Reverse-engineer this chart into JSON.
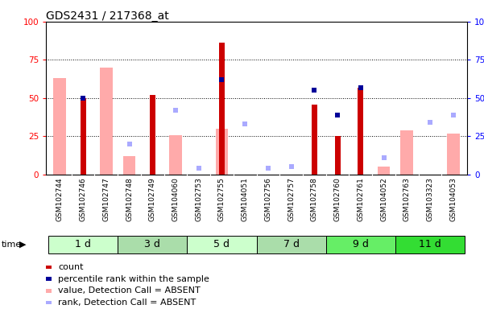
{
  "title": "GDS2431 / 217368_at",
  "samples": [
    "GSM102744",
    "GSM102746",
    "GSM102747",
    "GSM102748",
    "GSM102749",
    "GSM104060",
    "GSM102753",
    "GSM102755",
    "GSM104051",
    "GSM102756",
    "GSM102757",
    "GSM102758",
    "GSM102760",
    "GSM102761",
    "GSM104052",
    "GSM102763",
    "GSM103323",
    "GSM104053"
  ],
  "time_groups": [
    {
      "label": "1 d",
      "indices": [
        0,
        1,
        2
      ],
      "color": "#ccffcc"
    },
    {
      "label": "3 d",
      "indices": [
        3,
        4,
        5
      ],
      "color": "#aaddaa"
    },
    {
      "label": "5 d",
      "indices": [
        6,
        7,
        8
      ],
      "color": "#ccffcc"
    },
    {
      "label": "7 d",
      "indices": [
        9,
        10,
        11
      ],
      "color": "#aaddaa"
    },
    {
      "label": "9 d",
      "indices": [
        12,
        13,
        14
      ],
      "color": "#66ee66"
    },
    {
      "label": "11 d",
      "indices": [
        15,
        16,
        17
      ],
      "color": "#33dd33"
    }
  ],
  "count_values": [
    null,
    50,
    null,
    null,
    52,
    null,
    null,
    86,
    null,
    null,
    null,
    46,
    25,
    57,
    null,
    null,
    null,
    null
  ],
  "percentile_rank_values": [
    null,
    50,
    null,
    null,
    null,
    null,
    null,
    62,
    null,
    null,
    null,
    55,
    39,
    57,
    null,
    null,
    null,
    null
  ],
  "value_absent": [
    63,
    null,
    70,
    12,
    null,
    26,
    null,
    30,
    null,
    null,
    null,
    null,
    null,
    null,
    5,
    29,
    null,
    27
  ],
  "rank_absent": [
    null,
    null,
    null,
    20,
    null,
    42,
    4,
    null,
    33,
    4,
    5,
    null,
    null,
    null,
    11,
    null,
    34,
    39
  ],
  "count_color": "#cc0000",
  "percentile_color": "#000099",
  "value_absent_color": "#ffaaaa",
  "rank_absent_color": "#aaaaff",
  "yticks": [
    0,
    25,
    50,
    75,
    100
  ],
  "ylim": [
    0,
    100
  ],
  "plot_bg": "#ffffff",
  "xticklabel_bg": "#d8d8d8"
}
